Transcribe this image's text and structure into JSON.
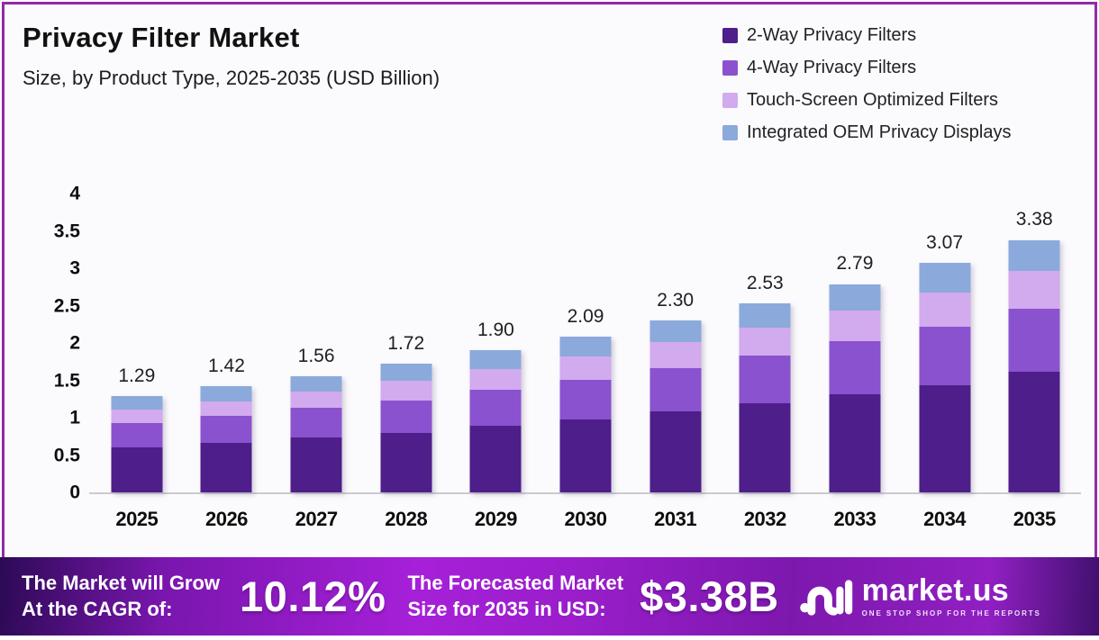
{
  "header": {
    "title": "Privacy Filter Market",
    "subtitle": "Size, by Product Type, 2025-2035 (USD Billion)"
  },
  "chart_data": {
    "type": "bar",
    "stacked": true,
    "title": "Privacy Filter Market",
    "subtitle": "Size, by Product Type, 2025-2035 (USD Billion)",
    "xlabel": "",
    "ylabel": "USD Billion",
    "ylim": [
      0,
      4
    ],
    "grid": false,
    "legend_position": "top-right",
    "categories": [
      "2025",
      "2026",
      "2027",
      "2028",
      "2029",
      "2030",
      "2031",
      "2032",
      "2033",
      "2034",
      "2035"
    ],
    "series": [
      {
        "name": "2-Way Privacy Filters",
        "color": "#4e1e8a",
        "values": [
          0.6,
          0.66,
          0.73,
          0.8,
          0.89,
          0.98,
          1.08,
          1.19,
          1.31,
          1.44,
          1.61
        ]
      },
      {
        "name": "4-Way Privacy Filters",
        "color": "#8a52ce",
        "values": [
          0.33,
          0.36,
          0.4,
          0.43,
          0.48,
          0.53,
          0.58,
          0.64,
          0.71,
          0.78,
          0.85
        ]
      },
      {
        "name": "Touch-Screen Optimized Filters",
        "color": "#d2aaee",
        "values": [
          0.18,
          0.2,
          0.22,
          0.26,
          0.28,
          0.31,
          0.35,
          0.38,
          0.42,
          0.46,
          0.5
        ]
      },
      {
        "name": "Integrated OEM Privacy Displays",
        "color": "#8ba9db",
        "values": [
          0.18,
          0.2,
          0.21,
          0.23,
          0.25,
          0.27,
          0.29,
          0.32,
          0.35,
          0.39,
          0.42
        ]
      }
    ],
    "totals_labels": [
      "1.29",
      "1.42",
      "1.56",
      "1.72",
      "1.90",
      "2.09",
      "2.30",
      "2.53",
      "2.79",
      "3.07",
      "3.38"
    ],
    "yticks": [
      {
        "label": "0",
        "value": 0
      },
      {
        "label": "0.5",
        "value": 0.5
      },
      {
        "label": "1",
        "value": 1
      },
      {
        "label": "1.5",
        "value": 1.5
      },
      {
        "label": "2",
        "value": 2
      },
      {
        "label": "2.5",
        "value": 2.5
      },
      {
        "label": "3",
        "value": 3
      },
      {
        "label": "3.5",
        "value": 3.5
      },
      {
        "label": "4",
        "value": 4
      }
    ]
  },
  "banner": {
    "cagr_label_line1": "The Market will Grow",
    "cagr_label_line2": "At the CAGR of:",
    "cagr_value": "10.12%",
    "forecast_label_line1": "The Forecasted Market",
    "forecast_label_line2": "Size for 2035 in USD:",
    "forecast_value": "$3.38B",
    "brand_name": "market.us",
    "brand_tagline": "ONE STOP SHOP FOR THE REPORTS"
  },
  "colors": {
    "page_border": "#8e2da5",
    "axis_line": "#cbcbcf",
    "banner_gradient_dark": "#2d0a56",
    "banner_gradient_bright": "#a620d8",
    "banner_gradient_end": "#40106e"
  }
}
